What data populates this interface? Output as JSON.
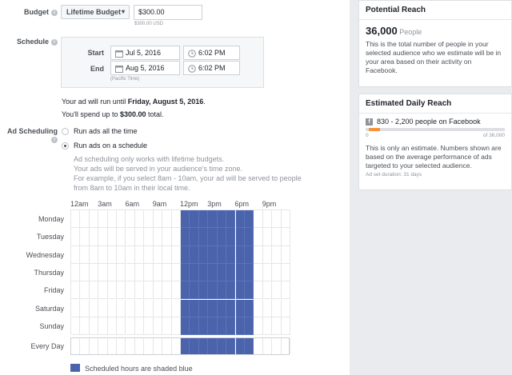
{
  "budget": {
    "label": "Budget",
    "type_label": "Lifetime Budget",
    "amount": "$300.00",
    "amount_note": "$300.00 USD"
  },
  "schedule": {
    "label": "Schedule",
    "start_label": "Start",
    "start_date": "Jul 5, 2016",
    "start_time": "6:02 PM",
    "end_label": "End",
    "end_date": "Aug 5, 2016",
    "end_time": "6:02 PM",
    "timezone_note": "(Pacific Time)"
  },
  "summary": {
    "run_until_prefix": "Your ad will run until ",
    "run_until_date": "Friday, August 5, 2016",
    "run_until_suffix": ".",
    "spend_prefix": "You'll spend up to ",
    "spend_amount": "$300.00",
    "spend_suffix": " total."
  },
  "ad_scheduling": {
    "label": "Ad Scheduling",
    "option_all": "Run ads all the time",
    "option_schedule": "Run ads on a schedule",
    "selected": "schedule",
    "note_line1": "Ad scheduling only works with lifetime budgets.",
    "note_line2": "Your ads will be served in your audience's time zone.",
    "note_line3": "For example, if you select 8am - 10am, your ad will be served to people",
    "note_line4": "from 8am to 10am in their local time."
  },
  "grid": {
    "hour_labels": [
      "12am",
      "3am",
      "6am",
      "9am",
      "12pm",
      "3pm",
      "6pm",
      "9pm"
    ],
    "days": [
      "Monday",
      "Tuesday",
      "Wednesday",
      "Thursday",
      "Friday",
      "Saturday",
      "Sunday"
    ],
    "every_day_label": "Every Day",
    "active_start_hour": 12,
    "active_end_hour": 20,
    "active_color": "#4a63ab",
    "legend": "Scheduled hours are shaded blue"
  },
  "potential_reach": {
    "title": "Potential Reach",
    "count": "36,000",
    "unit": "People",
    "description": "This is the total number of people in your selected audience who we estimate will be in your area based on their activity on Facebook."
  },
  "daily_reach": {
    "title": "Estimated Daily Reach",
    "range": "830 - 2,200 people on Facebook",
    "scale_min": "0",
    "scale_max": "of 36,000",
    "fill_fraction_start": 0.023,
    "fill_fraction_end": 0.061,
    "fill_color": "#f7923b",
    "description": "This is only an estimate. Numbers shown are based on the average performance of ads targeted to your selected audience.",
    "duration": "Ad set duration: 31 days"
  }
}
